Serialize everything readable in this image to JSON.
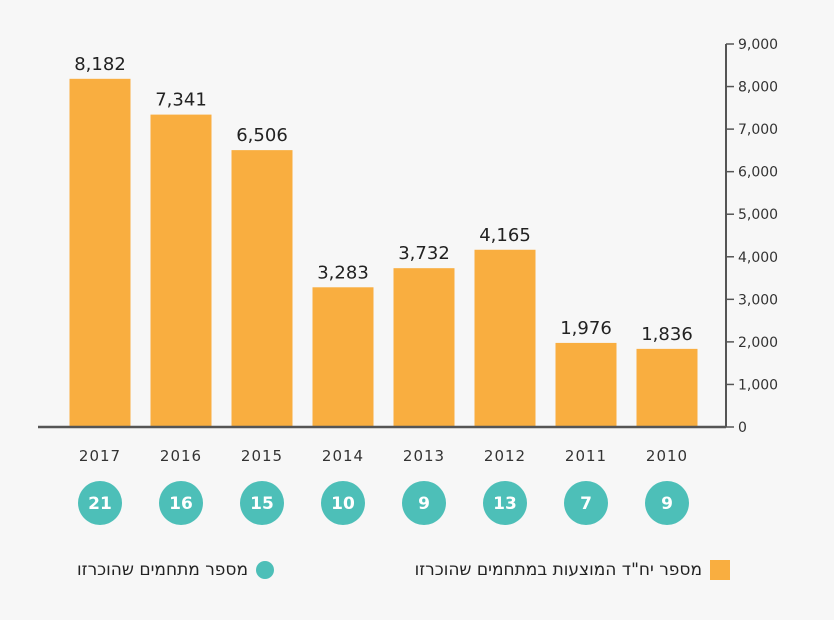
{
  "chart_data": {
    "type": "bar",
    "categories": [
      "2017",
      "2016",
      "2015",
      "2014",
      "2013",
      "2012",
      "2011",
      "2010"
    ],
    "series": [
      {
        "name": "מספר יח\"ד המוצעות במתחמים שהוכרזו",
        "values": [
          8182,
          7341,
          6506,
          3283,
          3732,
          4165,
          1976,
          1836
        ],
        "data_labels": [
          "8,182",
          "7,341",
          "6,506",
          "3,283",
          "3,732",
          "4,165",
          "1,976",
          "1,836"
        ]
      },
      {
        "name": "מספר מתחמים שהוכרזו",
        "values": [
          21,
          16,
          15,
          10,
          9,
          13,
          7,
          9
        ]
      }
    ],
    "y_axis": {
      "position": "right",
      "range": [
        0,
        9000
      ],
      "ticks": [
        "0",
        "1,000",
        "2,000",
        "3,000",
        "4,000",
        "5,000",
        "6,000",
        "7,000",
        "8,000",
        "9,000"
      ]
    },
    "grid": false,
    "legend_placement": "bottom"
  },
  "colors": {
    "bar": "#f9ae40",
    "circle": "#4dbfb8",
    "axis": "#555555",
    "background": "#f7f7f7"
  }
}
